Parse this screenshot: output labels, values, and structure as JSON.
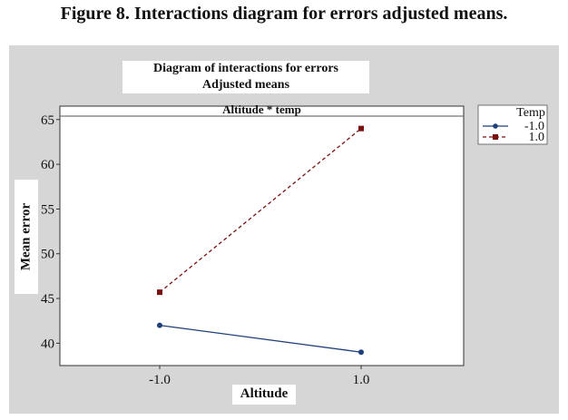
{
  "figure": {
    "caption": "Figure 8. Interactions diagram for errors adjusted means."
  },
  "chart_data": {
    "type": "line",
    "title": "Diagram of interactions for errors",
    "subtitle": "Adjusted means",
    "panel_label": "Altitude * temp",
    "xlabel": "Altitude",
    "ylabel": "Mean error",
    "x": [
      "-1.0",
      "1.0"
    ],
    "ylim": [
      37.5,
      66.5
    ],
    "yticks": [
      40,
      45,
      50,
      55,
      60,
      65
    ],
    "grid": false,
    "legend": {
      "title": "Temp",
      "position": "right"
    },
    "series": [
      {
        "name": "-1.0",
        "values": [
          42.0,
          39.0
        ],
        "color": "#1f3f7a",
        "marker": "circle",
        "line": "solid"
      },
      {
        "name": "1.0",
        "values": [
          45.7,
          64.0
        ],
        "color": "#7a1010",
        "marker": "square",
        "line": "dashed"
      }
    ]
  }
}
